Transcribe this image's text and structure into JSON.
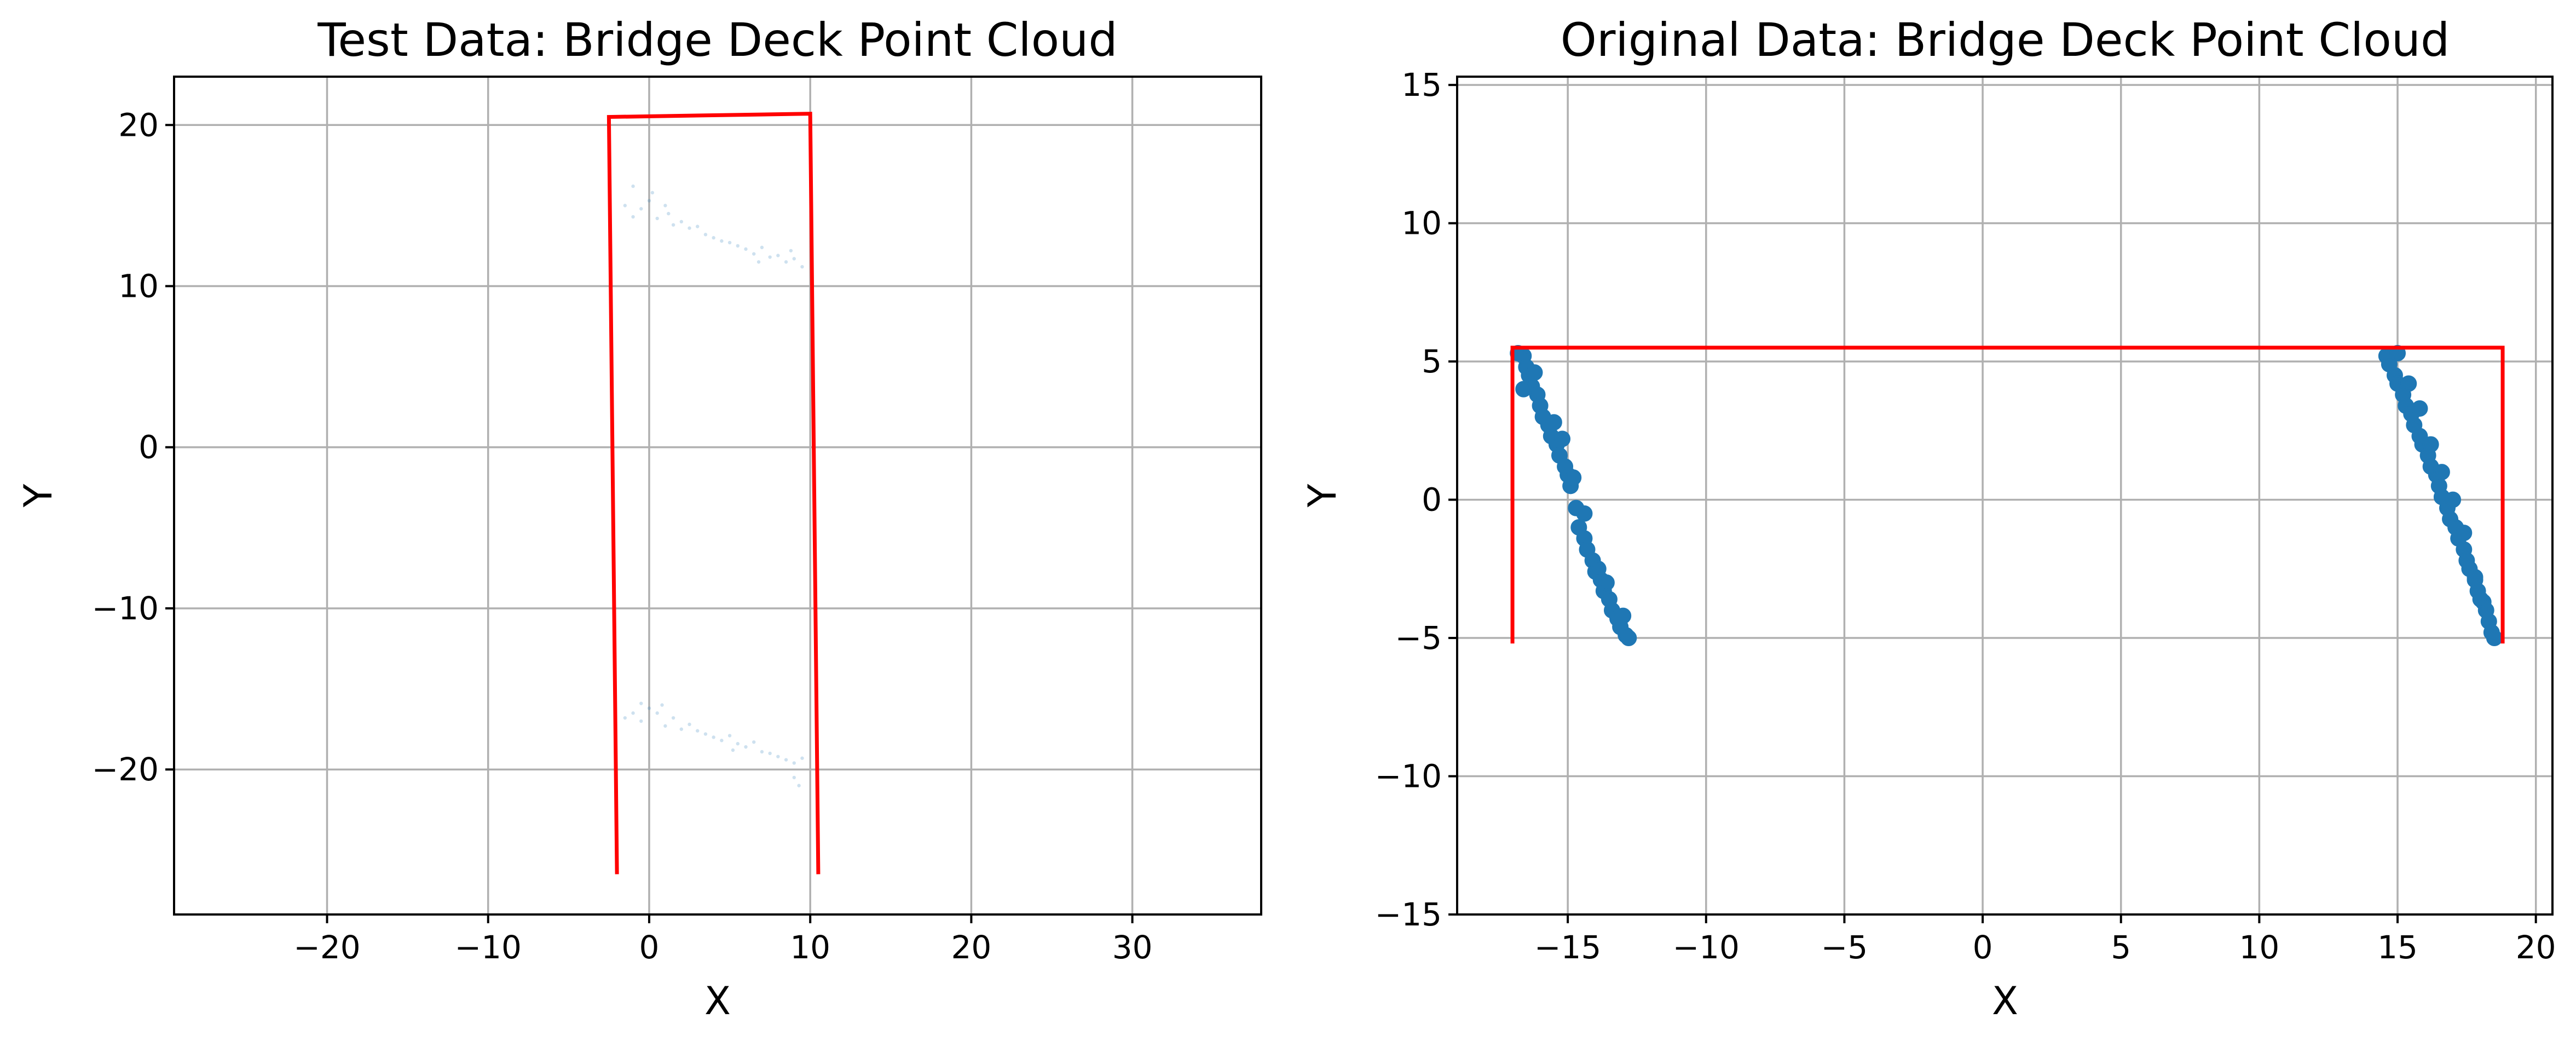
{
  "chart_data": [
    {
      "type": "scatter",
      "title": "Test Data: Bridge Deck Point Cloud",
      "xlabel": "X",
      "ylabel": "Y",
      "xlim": [
        -29.5,
        38
      ],
      "ylim": [
        -29,
        23
      ],
      "xticks": [
        -20,
        -10,
        0,
        10,
        20,
        30
      ],
      "yticks": [
        -20,
        -10,
        0,
        10,
        20
      ],
      "grid": true,
      "colors": {
        "points": "#1f77b4",
        "outline": "#ff0000"
      },
      "outline": {
        "x": [
          -2.0,
          -2.5,
          10.0,
          10.5
        ],
        "y": [
          -26.5,
          20.5,
          20.7,
          -26.5
        ]
      },
      "series": [
        {
          "x": [
            -1.5,
            -1.0,
            -0.5,
            0.0,
            0.5,
            1.0,
            1.5,
            2.0,
            2.5,
            3.0,
            3.5,
            4.0,
            4.5,
            5.0,
            5.5,
            6.0,
            6.5,
            7.0,
            7.5,
            8.0,
            8.5,
            9.0,
            9.5,
            -1.0,
            0.2,
            1.2,
            6.8,
            8.8
          ],
          "y": [
            15.0,
            16.2,
            14.8,
            15.3,
            14.2,
            15.0,
            13.8,
            14.0,
            13.6,
            13.7,
            13.2,
            13.0,
            12.8,
            12.7,
            12.5,
            12.3,
            12.0,
            12.4,
            11.8,
            11.9,
            11.5,
            11.7,
            11.2,
            14.3,
            15.8,
            14.5,
            11.5,
            12.2
          ]
        },
        {
          "x": [
            -1.5,
            -1.0,
            -0.5,
            0.0,
            0.5,
            1.0,
            1.5,
            2.0,
            2.5,
            3.0,
            3.5,
            4.0,
            4.5,
            5.0,
            5.5,
            6.0,
            6.5,
            7.0,
            7.5,
            8.0,
            8.5,
            9.0,
            9.5,
            -0.5,
            0.8,
            5.2,
            9.0,
            9.3
          ],
          "y": [
            -16.8,
            -16.5,
            -17.0,
            -16.2,
            -16.5,
            -17.3,
            -16.8,
            -17.5,
            -17.2,
            -17.6,
            -17.8,
            -18.0,
            -18.2,
            -17.9,
            -18.4,
            -18.6,
            -18.3,
            -18.9,
            -19.0,
            -19.2,
            -19.4,
            -19.6,
            -19.3,
            -15.9,
            -16.0,
            -18.8,
            -20.5,
            -21.0
          ]
        }
      ]
    },
    {
      "type": "scatter",
      "title": "Original Data: Bridge Deck Point Cloud",
      "xlabel": "X",
      "ylabel": "Y",
      "xlim": [
        -19,
        20.6
      ],
      "ylim": [
        -15,
        15.3
      ],
      "xticks": [
        -15,
        -10,
        -5,
        0,
        5,
        10,
        15,
        20
      ],
      "yticks": [
        -15,
        -10,
        -5,
        0,
        5,
        10,
        15
      ],
      "grid": true,
      "colors": {
        "points": "#1f77b4",
        "outline": "#ff0000"
      },
      "outline": {
        "x": [
          -17.0,
          -17.0,
          18.8,
          18.8
        ],
        "y": [
          -5.2,
          5.5,
          5.5,
          -5.2
        ]
      },
      "series": [
        {
          "x": [
            -16.6,
            -16.5,
            -16.4,
            -16.3,
            -16.1,
            -16.0,
            -15.9,
            -15.7,
            -15.6,
            -15.4,
            -15.3,
            -15.1,
            -15.0,
            -14.9,
            -14.7,
            -14.6,
            -14.4,
            -14.3,
            -14.1,
            -14.0,
            -13.8,
            -13.7,
            -13.5,
            -13.4,
            -13.2,
            -13.1,
            -12.9,
            -12.8
          ],
          "y": [
            5.2,
            4.8,
            4.5,
            4.1,
            3.8,
            3.4,
            3.0,
            2.7,
            2.3,
            2.0,
            1.6,
            1.2,
            0.9,
            0.5,
            -0.3,
            -1.0,
            -1.4,
            -1.8,
            -2.2,
            -2.6,
            -2.9,
            -3.3,
            -3.6,
            -4.0,
            -4.3,
            -4.6,
            -4.9,
            -5.0
          ]
        },
        {
          "x": [
            -16.8,
            -16.6,
            -15.5,
            -14.8,
            -13.6,
            -13.0,
            -14.4,
            -16.2,
            -15.2,
            -13.9
          ],
          "y": [
            5.3,
            4.0,
            2.8,
            0.8,
            -3.0,
            -4.2,
            -0.5,
            4.6,
            2.2,
            -2.5
          ]
        },
        {
          "x": [
            14.6,
            14.7,
            14.9,
            15.0,
            15.2,
            15.3,
            15.5,
            15.6,
            15.8,
            15.9,
            16.1,
            16.2,
            16.4,
            16.5,
            16.6,
            16.8,
            16.9,
            17.1,
            17.2,
            17.4,
            17.5,
            17.6,
            17.8,
            17.9,
            18.1,
            18.2,
            18.3,
            18.4
          ],
          "y": [
            5.2,
            4.9,
            4.5,
            4.2,
            3.8,
            3.4,
            3.1,
            2.7,
            2.3,
            2.0,
            1.6,
            1.2,
            0.9,
            0.5,
            0.1,
            -0.3,
            -0.7,
            -1.0,
            -1.4,
            -1.8,
            -2.2,
            -2.5,
            -2.9,
            -3.3,
            -3.7,
            -4.0,
            -4.4,
            -4.8
          ]
        },
        {
          "x": [
            15.0,
            15.8,
            16.6,
            17.4,
            18.0,
            18.5,
            15.4,
            16.2,
            17.0,
            17.8
          ],
          "y": [
            5.3,
            3.3,
            1.0,
            -1.2,
            -3.6,
            -5.0,
            4.2,
            2.0,
            0.0,
            -2.8
          ]
        }
      ]
    }
  ]
}
